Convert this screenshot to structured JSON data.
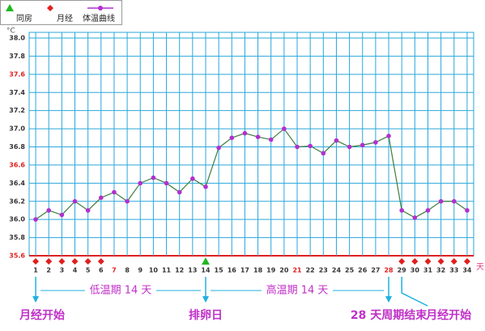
{
  "chart_data": {
    "type": "line",
    "y_unit": "°C",
    "x_unit": "天",
    "x": [
      1,
      2,
      3,
      4,
      5,
      6,
      7,
      8,
      9,
      10,
      11,
      12,
      13,
      14,
      15,
      16,
      17,
      18,
      19,
      20,
      21,
      22,
      23,
      24,
      25,
      26,
      27,
      28,
      29,
      30,
      31,
      32,
      33,
      34
    ],
    "xlim": [
      0.5,
      34.5
    ],
    "ylim": [
      35.6,
      38.0
    ],
    "yticks": [
      35.6,
      35.8,
      {
        "value": 36.0,
        "label": "36.0"
      },
      36.2,
      36.4,
      36.6,
      36.8,
      {
        "value": 37.0,
        "label": "37.0"
      },
      37.2,
      37.4,
      37.6,
      37.8,
      {
        "value": 38.0,
        "label": "38.0"
      }
    ],
    "red_yticks": [
      35.6,
      36.6,
      37.6
    ],
    "red_days": [
      7,
      21,
      28
    ],
    "grid": true,
    "series": [
      {
        "name": "体温曲线",
        "color": "#b22fd0",
        "line_color": "#3d7d3d",
        "values": [
          36.0,
          36.1,
          36.05,
          36.2,
          36.1,
          36.24,
          36.3,
          36.2,
          36.4,
          36.46,
          36.4,
          36.3,
          36.45,
          36.36,
          36.79,
          36.9,
          36.95,
          36.91,
          36.88,
          37.0,
          36.8,
          36.81,
          36.73,
          36.87,
          36.8,
          36.82,
          36.85,
          36.92,
          36.1,
          36.02,
          36.1,
          36.2,
          36.2,
          36.1
        ]
      }
    ],
    "markers": [
      {
        "name": "同房",
        "shape": "triangle",
        "color": "#22b822",
        "days": [
          14
        ]
      },
      {
        "name": "月经",
        "shape": "diamond",
        "color": "#e0201e",
        "days": [
          1,
          2,
          3,
          4,
          5,
          6,
          29,
          30,
          31,
          32,
          33,
          34
        ]
      }
    ],
    "phases": [
      {
        "label": "低温期 14 天",
        "from": 1,
        "to": 14
      },
      {
        "label": "高温期 14 天",
        "from": 14,
        "to": 28
      }
    ],
    "arrows": [
      {
        "label": "月经开始",
        "day": 1
      },
      {
        "label": "排卵日",
        "day": 14
      },
      {
        "label": "28 天周期结束",
        "day": 28
      },
      {
        "label": "月经开始",
        "day": 29
      }
    ]
  }
}
